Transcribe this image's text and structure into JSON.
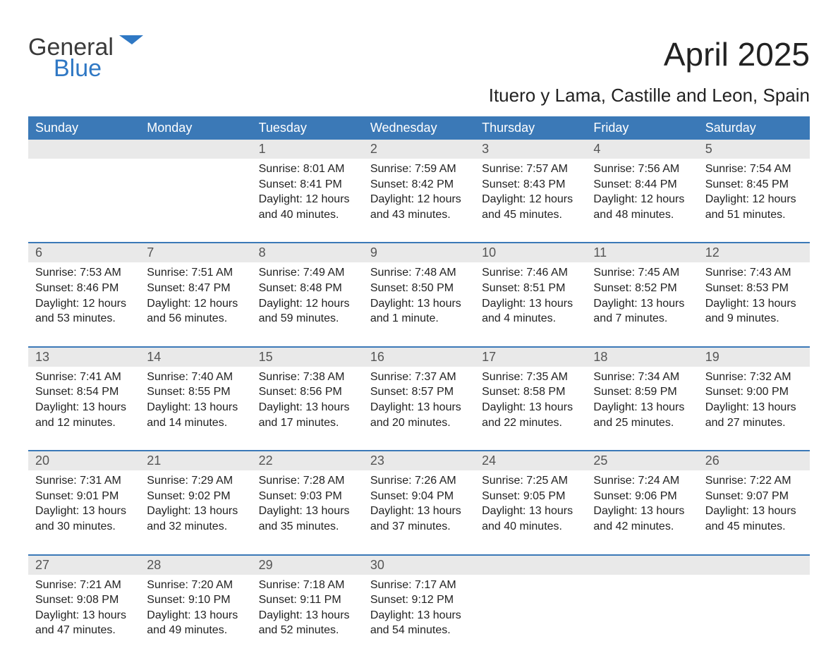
{
  "logo": {
    "general": "General",
    "blue": "Blue"
  },
  "title": "April 2025",
  "subtitle": "Ituero y Lama, Castille and Leon, Spain",
  "colors": {
    "header_bg": "#3b79b7",
    "header_text": "#ffffff",
    "daynum_bg": "#e9e9e9",
    "daynum_text": "#555555",
    "body_text": "#222222",
    "logo_gray": "#3a3a3a",
    "logo_blue": "#2f78c4",
    "background": "#ffffff"
  },
  "typography": {
    "title_fontsize": 46,
    "subtitle_fontsize": 26,
    "dayname_fontsize": 18,
    "daynum_fontsize": 18,
    "cell_fontsize": 16,
    "logo_fontsize": 34
  },
  "daynames": [
    "Sunday",
    "Monday",
    "Tuesday",
    "Wednesday",
    "Thursday",
    "Friday",
    "Saturday"
  ],
  "weeks": [
    [
      {
        "n": "",
        "lines": []
      },
      {
        "n": "",
        "lines": []
      },
      {
        "n": "1",
        "lines": [
          "Sunrise: 8:01 AM",
          "Sunset: 8:41 PM",
          "Daylight: 12 hours and 40 minutes."
        ]
      },
      {
        "n": "2",
        "lines": [
          "Sunrise: 7:59 AM",
          "Sunset: 8:42 PM",
          "Daylight: 12 hours and 43 minutes."
        ]
      },
      {
        "n": "3",
        "lines": [
          "Sunrise: 7:57 AM",
          "Sunset: 8:43 PM",
          "Daylight: 12 hours and 45 minutes."
        ]
      },
      {
        "n": "4",
        "lines": [
          "Sunrise: 7:56 AM",
          "Sunset: 8:44 PM",
          "Daylight: 12 hours and 48 minutes."
        ]
      },
      {
        "n": "5",
        "lines": [
          "Sunrise: 7:54 AM",
          "Sunset: 8:45 PM",
          "Daylight: 12 hours and 51 minutes."
        ]
      }
    ],
    [
      {
        "n": "6",
        "lines": [
          "Sunrise: 7:53 AM",
          "Sunset: 8:46 PM",
          "Daylight: 12 hours and 53 minutes."
        ]
      },
      {
        "n": "7",
        "lines": [
          "Sunrise: 7:51 AM",
          "Sunset: 8:47 PM",
          "Daylight: 12 hours and 56 minutes."
        ]
      },
      {
        "n": "8",
        "lines": [
          "Sunrise: 7:49 AM",
          "Sunset: 8:48 PM",
          "Daylight: 12 hours and 59 minutes."
        ]
      },
      {
        "n": "9",
        "lines": [
          "Sunrise: 7:48 AM",
          "Sunset: 8:50 PM",
          "Daylight: 13 hours and 1 minute."
        ]
      },
      {
        "n": "10",
        "lines": [
          "Sunrise: 7:46 AM",
          "Sunset: 8:51 PM",
          "Daylight: 13 hours and 4 minutes."
        ]
      },
      {
        "n": "11",
        "lines": [
          "Sunrise: 7:45 AM",
          "Sunset: 8:52 PM",
          "Daylight: 13 hours and 7 minutes."
        ]
      },
      {
        "n": "12",
        "lines": [
          "Sunrise: 7:43 AM",
          "Sunset: 8:53 PM",
          "Daylight: 13 hours and 9 minutes."
        ]
      }
    ],
    [
      {
        "n": "13",
        "lines": [
          "Sunrise: 7:41 AM",
          "Sunset: 8:54 PM",
          "Daylight: 13 hours and 12 minutes."
        ]
      },
      {
        "n": "14",
        "lines": [
          "Sunrise: 7:40 AM",
          "Sunset: 8:55 PM",
          "Daylight: 13 hours and 14 minutes."
        ]
      },
      {
        "n": "15",
        "lines": [
          "Sunrise: 7:38 AM",
          "Sunset: 8:56 PM",
          "Daylight: 13 hours and 17 minutes."
        ]
      },
      {
        "n": "16",
        "lines": [
          "Sunrise: 7:37 AM",
          "Sunset: 8:57 PM",
          "Daylight: 13 hours and 20 minutes."
        ]
      },
      {
        "n": "17",
        "lines": [
          "Sunrise: 7:35 AM",
          "Sunset: 8:58 PM",
          "Daylight: 13 hours and 22 minutes."
        ]
      },
      {
        "n": "18",
        "lines": [
          "Sunrise: 7:34 AM",
          "Sunset: 8:59 PM",
          "Daylight: 13 hours and 25 minutes."
        ]
      },
      {
        "n": "19",
        "lines": [
          "Sunrise: 7:32 AM",
          "Sunset: 9:00 PM",
          "Daylight: 13 hours and 27 minutes."
        ]
      }
    ],
    [
      {
        "n": "20",
        "lines": [
          "Sunrise: 7:31 AM",
          "Sunset: 9:01 PM",
          "Daylight: 13 hours and 30 minutes."
        ]
      },
      {
        "n": "21",
        "lines": [
          "Sunrise: 7:29 AM",
          "Sunset: 9:02 PM",
          "Daylight: 13 hours and 32 minutes."
        ]
      },
      {
        "n": "22",
        "lines": [
          "Sunrise: 7:28 AM",
          "Sunset: 9:03 PM",
          "Daylight: 13 hours and 35 minutes."
        ]
      },
      {
        "n": "23",
        "lines": [
          "Sunrise: 7:26 AM",
          "Sunset: 9:04 PM",
          "Daylight: 13 hours and 37 minutes."
        ]
      },
      {
        "n": "24",
        "lines": [
          "Sunrise: 7:25 AM",
          "Sunset: 9:05 PM",
          "Daylight: 13 hours and 40 minutes."
        ]
      },
      {
        "n": "25",
        "lines": [
          "Sunrise: 7:24 AM",
          "Sunset: 9:06 PM",
          "Daylight: 13 hours and 42 minutes."
        ]
      },
      {
        "n": "26",
        "lines": [
          "Sunrise: 7:22 AM",
          "Sunset: 9:07 PM",
          "Daylight: 13 hours and 45 minutes."
        ]
      }
    ],
    [
      {
        "n": "27",
        "lines": [
          "Sunrise: 7:21 AM",
          "Sunset: 9:08 PM",
          "Daylight: 13 hours and 47 minutes."
        ]
      },
      {
        "n": "28",
        "lines": [
          "Sunrise: 7:20 AM",
          "Sunset: 9:10 PM",
          "Daylight: 13 hours and 49 minutes."
        ]
      },
      {
        "n": "29",
        "lines": [
          "Sunrise: 7:18 AM",
          "Sunset: 9:11 PM",
          "Daylight: 13 hours and 52 minutes."
        ]
      },
      {
        "n": "30",
        "lines": [
          "Sunrise: 7:17 AM",
          "Sunset: 9:12 PM",
          "Daylight: 13 hours and 54 minutes."
        ]
      },
      {
        "n": "",
        "lines": []
      },
      {
        "n": "",
        "lines": []
      },
      {
        "n": "",
        "lines": []
      }
    ]
  ]
}
